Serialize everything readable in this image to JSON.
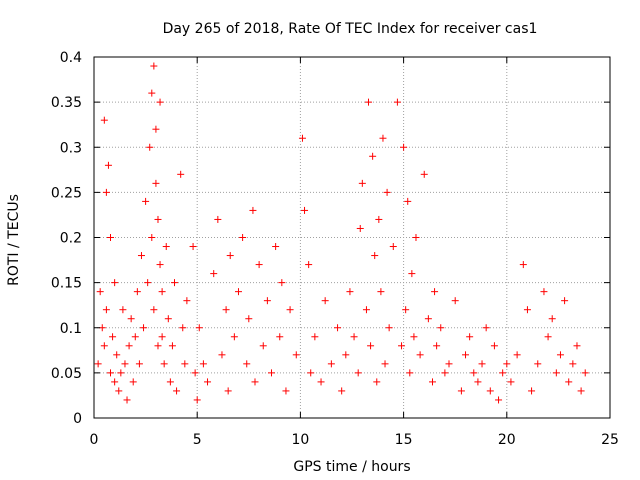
{
  "chart_data": {
    "type": "scatter",
    "title": "Day 265 of 2018, Rate Of TEC Index for receiver cas1",
    "xlabel": "GPS time / hours",
    "ylabel": "ROTI / TECUs",
    "xlim": [
      0,
      25
    ],
    "ylim": [
      0,
      0.4
    ],
    "xticks": [
      0,
      5,
      10,
      15,
      20,
      25
    ],
    "xtick_labels": [
      "0",
      "5",
      "10",
      "15",
      "20",
      "25"
    ],
    "yticks": [
      0,
      0.05,
      0.1,
      0.15,
      0.2,
      0.25,
      0.3,
      0.35,
      0.4
    ],
    "ytick_labels": [
      "0",
      "0.05",
      "0.1",
      "0.15",
      "0.2",
      "0.25",
      "0.3",
      "0.35",
      "0.4"
    ],
    "grid": true,
    "marker": "+",
    "marker_color": "#ff0000",
    "series": [
      {
        "name": "ROTI",
        "x": [
          0.2,
          0.3,
          0.4,
          0.5,
          0.5,
          0.6,
          0.6,
          0.7,
          0.8,
          0.8,
          0.9,
          1.0,
          1.0,
          1.1,
          1.2,
          1.3,
          1.4,
          1.5,
          1.6,
          1.7,
          1.8,
          1.9,
          2.0,
          2.1,
          2.2,
          2.3,
          2.4,
          2.5,
          2.6,
          2.7,
          2.8,
          2.8,
          2.9,
          2.9,
          3.0,
          3.0,
          3.1,
          3.1,
          3.2,
          3.2,
          3.3,
          3.3,
          3.4,
          3.5,
          3.6,
          3.7,
          3.8,
          3.9,
          4.0,
          4.2,
          4.3,
          4.4,
          4.5,
          4.8,
          4.9,
          5.0,
          5.1,
          5.3,
          5.5,
          5.8,
          6.0,
          6.2,
          6.4,
          6.5,
          6.6,
          6.8,
          7.0,
          7.2,
          7.4,
          7.5,
          7.7,
          7.8,
          8.0,
          8.2,
          8.4,
          8.6,
          8.8,
          9.0,
          9.1,
          9.3,
          9.5,
          9.8,
          10.1,
          10.2,
          10.4,
          10.5,
          10.7,
          11.0,
          11.2,
          11.5,
          11.8,
          12.0,
          12.2,
          12.4,
          12.6,
          12.8,
          12.9,
          13.0,
          13.2,
          13.3,
          13.4,
          13.5,
          13.6,
          13.7,
          13.8,
          13.9,
          14.0,
          14.1,
          14.2,
          14.3,
          14.5,
          14.7,
          14.9,
          15.0,
          15.1,
          15.2,
          15.3,
          15.4,
          15.5,
          15.6,
          15.8,
          16.0,
          16.2,
          16.4,
          16.5,
          16.6,
          16.8,
          17.0,
          17.2,
          17.5,
          17.8,
          18.0,
          18.2,
          18.4,
          18.6,
          18.8,
          19.0,
          19.2,
          19.4,
          19.6,
          19.8,
          20.0,
          20.2,
          20.5,
          20.8,
          21.0,
          21.2,
          21.5,
          21.8,
          22.0,
          22.2,
          22.4,
          22.6,
          22.8,
          23.0,
          23.2,
          23.4,
          23.6,
          23.8
        ],
        "y": [
          0.06,
          0.14,
          0.1,
          0.33,
          0.08,
          0.25,
          0.12,
          0.28,
          0.05,
          0.2,
          0.09,
          0.04,
          0.15,
          0.07,
          0.03,
          0.05,
          0.12,
          0.06,
          0.02,
          0.08,
          0.11,
          0.04,
          0.09,
          0.14,
          0.06,
          0.18,
          0.1,
          0.24,
          0.15,
          0.3,
          0.2,
          0.36,
          0.39,
          0.12,
          0.26,
          0.32,
          0.08,
          0.22,
          0.35,
          0.17,
          0.09,
          0.14,
          0.06,
          0.19,
          0.11,
          0.04,
          0.08,
          0.15,
          0.03,
          0.27,
          0.1,
          0.06,
          0.13,
          0.19,
          0.05,
          0.02,
          0.1,
          0.06,
          0.04,
          0.16,
          0.22,
          0.07,
          0.12,
          0.03,
          0.18,
          0.09,
          0.14,
          0.2,
          0.06,
          0.11,
          0.23,
          0.04,
          0.17,
          0.08,
          0.13,
          0.05,
          0.19,
          0.09,
          0.15,
          0.03,
          0.12,
          0.07,
          0.31,
          0.23,
          0.17,
          0.05,
          0.09,
          0.04,
          0.13,
          0.06,
          0.1,
          0.03,
          0.07,
          0.14,
          0.09,
          0.05,
          0.21,
          0.26,
          0.12,
          0.35,
          0.08,
          0.29,
          0.18,
          0.04,
          0.22,
          0.14,
          0.31,
          0.06,
          0.25,
          0.1,
          0.19,
          0.35,
          0.08,
          0.3,
          0.12,
          0.24,
          0.05,
          0.16,
          0.09,
          0.2,
          0.07,
          0.27,
          0.11,
          0.04,
          0.14,
          0.08,
          0.1,
          0.05,
          0.06,
          0.13,
          0.03,
          0.07,
          0.09,
          0.05,
          0.04,
          0.06,
          0.1,
          0.03,
          0.08,
          0.02,
          0.05,
          0.06,
          0.04,
          0.07,
          0.17,
          0.12,
          0.03,
          0.06,
          0.14,
          0.09,
          0.11,
          0.05,
          0.07,
          0.13,
          0.04,
          0.06,
          0.08,
          0.03,
          0.05
        ]
      }
    ]
  }
}
